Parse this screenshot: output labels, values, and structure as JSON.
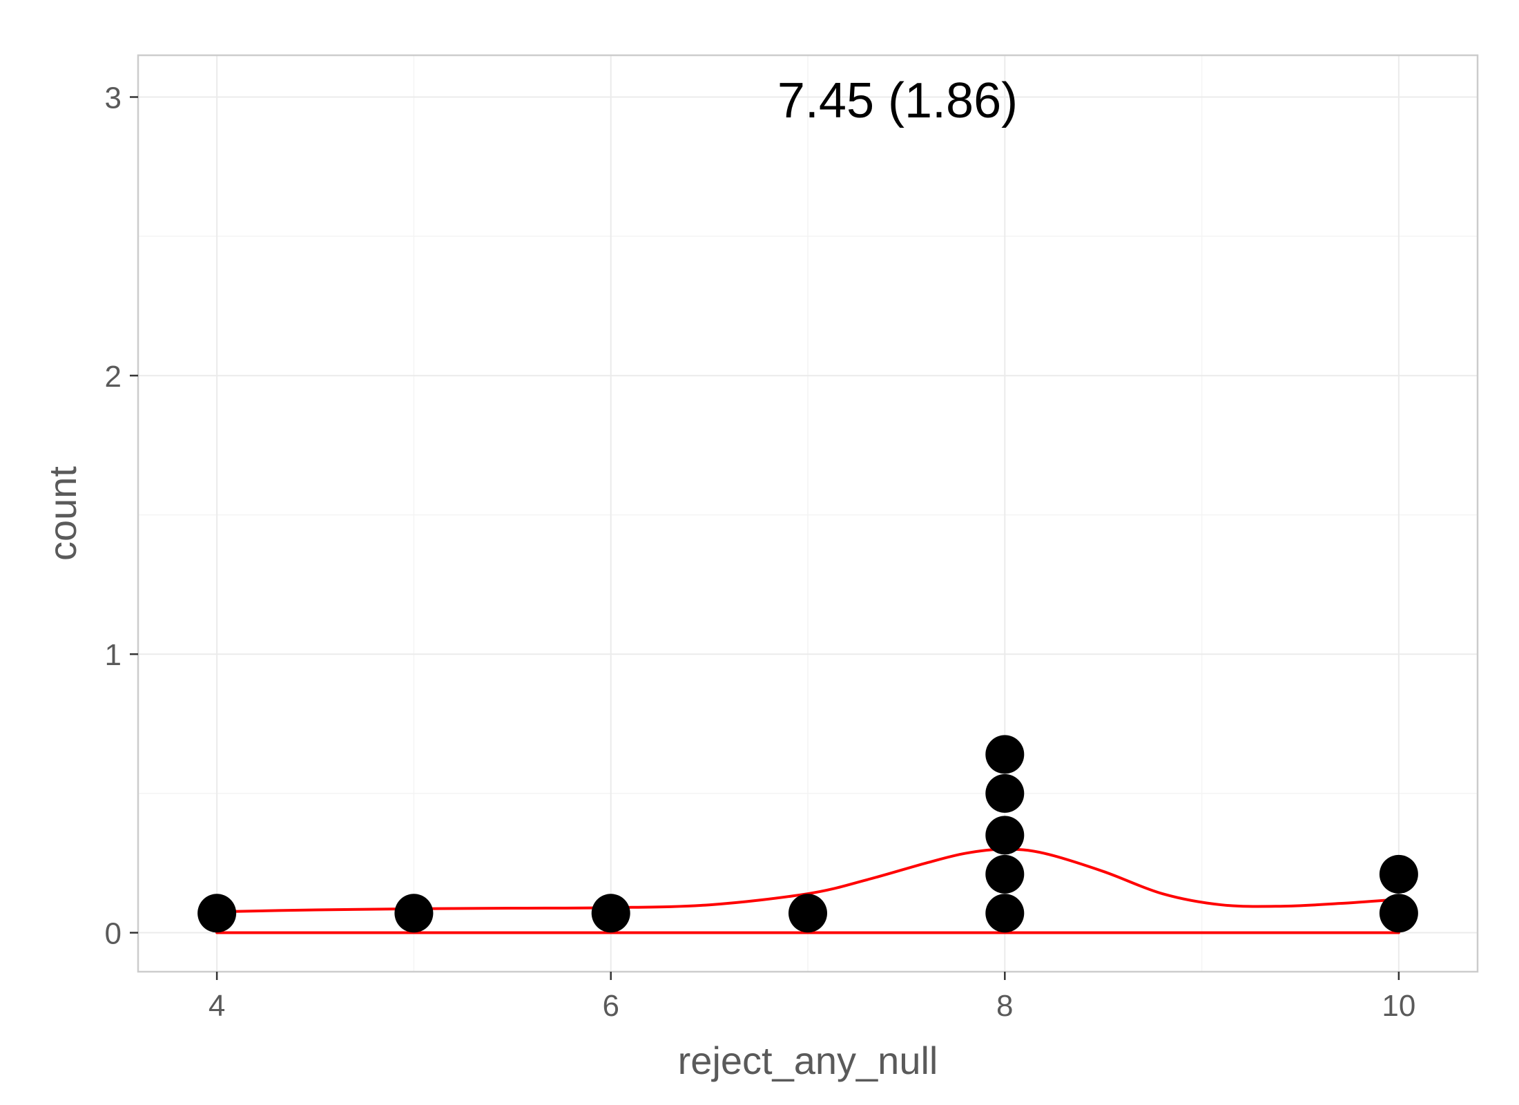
{
  "chart_data": {
    "type": "scatter",
    "subtype": "dotplot-with-density",
    "xlabel": "reject_any_null",
    "ylabel": "count",
    "annotation": "7.45 (1.86)",
    "xlim": [
      3.6,
      10.4
    ],
    "ylim": [
      -0.14,
      3.15
    ],
    "x_ticks": [
      4,
      6,
      8,
      10
    ],
    "x_tick_labels": [
      "4",
      "6",
      "8",
      "10"
    ],
    "y_ticks": [
      0,
      1,
      2,
      3
    ],
    "y_tick_labels": [
      "0",
      "1",
      "2",
      "3"
    ],
    "grid": true,
    "dots": [
      {
        "x": 4,
        "y": 0.07
      },
      {
        "x": 5,
        "y": 0.07
      },
      {
        "x": 6,
        "y": 0.07
      },
      {
        "x": 7,
        "y": 0.07
      },
      {
        "x": 8,
        "y": 0.07
      },
      {
        "x": 8,
        "y": 0.21
      },
      {
        "x": 8,
        "y": 0.35
      },
      {
        "x": 8,
        "y": 0.5
      },
      {
        "x": 8,
        "y": 0.64
      },
      {
        "x": 10,
        "y": 0.07
      },
      {
        "x": 10,
        "y": 0.21
      }
    ],
    "density": {
      "x": [
        4,
        4.5,
        5,
        5.5,
        6,
        6.5,
        7,
        7.3,
        7.6,
        7.8,
        8,
        8.2,
        8.5,
        8.8,
        9.1,
        9.4,
        9.7,
        10
      ],
      "y": [
        0.075,
        0.082,
        0.086,
        0.088,
        0.09,
        0.1,
        0.14,
        0.19,
        0.25,
        0.285,
        0.3,
        0.285,
        0.22,
        0.14,
        0.1,
        0.095,
        0.105,
        0.12
      ]
    },
    "colors": {
      "dots": "#000000",
      "density": "#ff0000",
      "grid": "#ebebeb",
      "panel_border": "#cccccc",
      "text": "#5a5a5a"
    }
  }
}
